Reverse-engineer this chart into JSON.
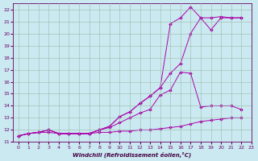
{
  "xlabel": "Windchill (Refroidissement éolien,°C)",
  "background_color": "#cbe9f0",
  "grid_color": "#99ccbb",
  "line_color": "#aa00aa",
  "xlim": [
    -0.5,
    23
  ],
  "ylim": [
    11,
    22.5
  ],
  "xticks": [
    0,
    1,
    2,
    3,
    4,
    5,
    6,
    7,
    8,
    9,
    10,
    11,
    12,
    13,
    14,
    15,
    16,
    17,
    18,
    19,
    20,
    21,
    22,
    23
  ],
  "yticks": [
    11,
    12,
    13,
    14,
    15,
    16,
    17,
    18,
    19,
    20,
    21,
    22
  ],
  "series": [
    {
      "x": [
        0,
        1,
        2,
        3,
        4,
        5,
        6,
        7,
        8,
        9,
        10,
        11,
        12,
        13,
        14,
        15,
        16,
        17,
        18,
        19,
        20,
        21,
        22
      ],
      "y": [
        11.5,
        11.7,
        11.8,
        11.8,
        11.7,
        11.7,
        11.7,
        11.7,
        11.8,
        11.8,
        11.9,
        11.9,
        12.0,
        12.0,
        12.1,
        12.2,
        12.3,
        12.5,
        12.7,
        12.8,
        12.9,
        13.0,
        13.0
      ]
    },
    {
      "x": [
        0,
        1,
        2,
        3,
        4,
        5,
        6,
        7,
        8,
        9,
        10,
        11,
        12,
        13,
        14,
        15,
        16,
        17,
        18,
        19,
        20,
        21,
        22
      ],
      "y": [
        11.5,
        11.7,
        11.8,
        12.0,
        11.7,
        11.7,
        11.7,
        11.7,
        12.0,
        12.2,
        12.6,
        13.0,
        13.4,
        13.7,
        14.9,
        15.3,
        16.8,
        16.7,
        13.9,
        14.0,
        14.0,
        14.0,
        13.7
      ]
    },
    {
      "x": [
        0,
        1,
        2,
        3,
        4,
        5,
        6,
        7,
        8,
        9,
        10,
        11,
        12,
        13,
        14,
        15,
        16,
        17,
        18,
        19,
        20,
        21,
        22
      ],
      "y": [
        11.5,
        11.7,
        11.8,
        12.0,
        11.7,
        11.7,
        11.7,
        11.7,
        12.0,
        12.3,
        13.1,
        13.5,
        14.2,
        14.8,
        15.5,
        16.7,
        17.5,
        20.0,
        21.3,
        21.3,
        21.4,
        21.3,
        21.3
      ]
    },
    {
      "x": [
        0,
        1,
        2,
        3,
        4,
        5,
        6,
        7,
        8,
        9,
        10,
        11,
        12,
        13,
        14,
        15,
        16,
        17,
        18,
        19,
        20,
        21,
        22
      ],
      "y": [
        11.5,
        11.7,
        11.8,
        12.0,
        11.7,
        11.7,
        11.7,
        11.7,
        12.0,
        12.3,
        13.1,
        13.5,
        14.2,
        14.8,
        15.5,
        20.8,
        21.3,
        22.2,
        21.3,
        20.3,
        21.3,
        21.3,
        21.3
      ]
    }
  ]
}
